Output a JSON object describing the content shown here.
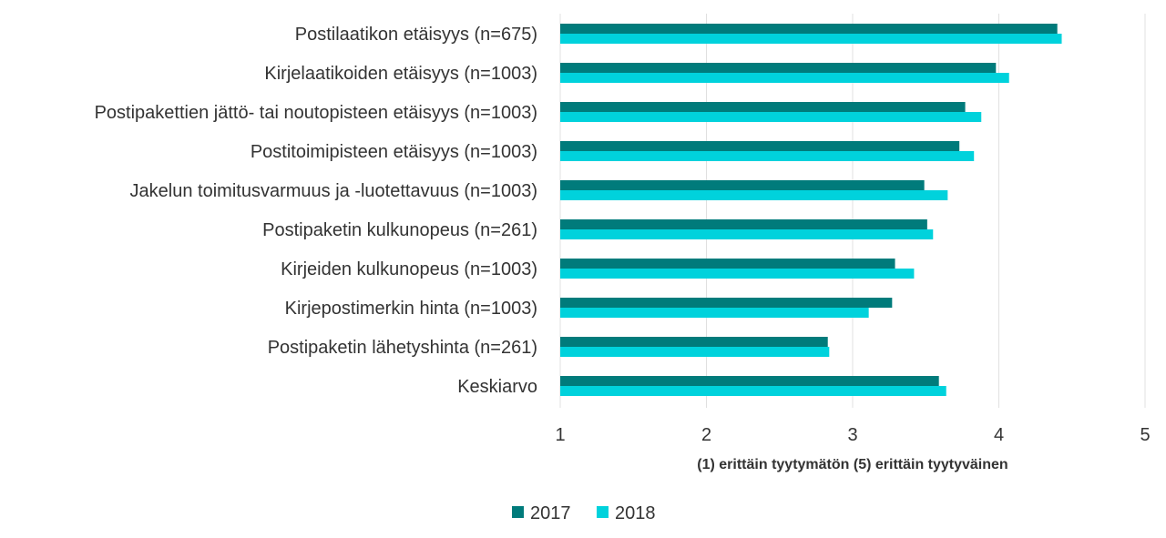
{
  "chart_data": {
    "type": "bar",
    "orientation": "horizontal",
    "categories": [
      "Postilaatikon etäisyys (n=675)",
      "Kirjelaatikoiden etäisyys (n=1003)",
      "Postipakettien jättö- tai noutopisteen etäisyys (n=1003)",
      "Postitoimipisteen etäisyys (n=1003)",
      "Jakelun toimitusvarmuus ja -luotettavuus (n=1003)",
      "Postipaketin kulkunopeus (n=261)",
      "Kirjeiden kulkunopeus (n=1003)",
      "Kirjepostimerkin hinta (n=1003)",
      "Postipaketin lähetyshinta (n=261)",
      "Keskiarvo"
    ],
    "series": [
      {
        "name": "2017",
        "color": "#007B7B",
        "values": [
          4.4,
          3.98,
          3.77,
          3.73,
          3.49,
          3.51,
          3.29,
          3.27,
          2.83,
          3.59
        ]
      },
      {
        "name": "2018",
        "color": "#00D2DC",
        "values": [
          4.43,
          4.07,
          3.88,
          3.83,
          3.65,
          3.55,
          3.42,
          3.11,
          2.84,
          3.64
        ]
      }
    ],
    "xlabel": "(1) erittäin tyytymätön (5) erittäin tyytyväinen",
    "xlim": [
      1,
      5
    ],
    "xticks": [
      "1",
      "2",
      "3",
      "4",
      "5"
    ],
    "grid": true,
    "legend_position": "bottom"
  }
}
